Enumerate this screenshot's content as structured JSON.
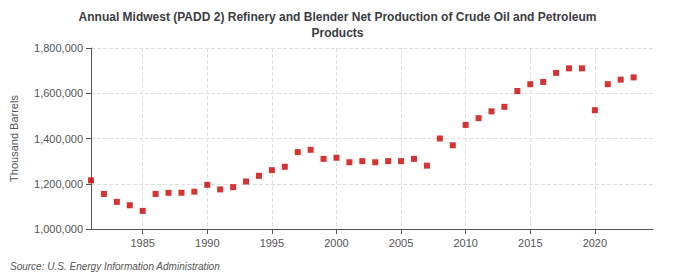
{
  "chart_data": {
    "type": "scatter",
    "title": "Annual Midwest (PADD 2) Refinery and Blender Net Production of Crude Oil and Petroleum\nProducts",
    "ylabel": "Thousand Barrels",
    "annotations": [
      "Source: U.S. Energy Information Administration"
    ],
    "x": [
      1981,
      1982,
      1983,
      1984,
      1985,
      1986,
      1987,
      1988,
      1989,
      1990,
      1991,
      1992,
      1993,
      1994,
      1995,
      1996,
      1997,
      1998,
      1999,
      2000,
      2001,
      2002,
      2003,
      2004,
      2005,
      2006,
      2007,
      2008,
      2009,
      2010,
      2011,
      2012,
      2013,
      2014,
      2015,
      2016,
      2017,
      2018,
      2019,
      2020,
      2021,
      2022,
      2023
    ],
    "values": [
      1215000,
      1155000,
      1120000,
      1105000,
      1080000,
      1155000,
      1160000,
      1160000,
      1165000,
      1195000,
      1175000,
      1185000,
      1210000,
      1235000,
      1260000,
      1275000,
      1340000,
      1350000,
      1310000,
      1315000,
      1295000,
      1300000,
      1295000,
      1300000,
      1300000,
      1310000,
      1280000,
      1400000,
      1370000,
      1460000,
      1490000,
      1520000,
      1540000,
      1610000,
      1640000,
      1650000,
      1690000,
      1710000,
      1710000,
      1525000,
      1640000,
      1660000,
      1670000
    ],
    "color": "#cc0000",
    "marker": "square",
    "xlim": [
      1981.0,
      2024.5
    ],
    "xticks": [
      1985,
      1990,
      1995,
      2000,
      2005,
      2010,
      2015,
      2020
    ],
    "ylim": [
      1000000,
      1800000
    ],
    "yticks": [
      {
        "value": 1000000,
        "label": "1,000,000"
      },
      {
        "value": 1200000,
        "label": "1,200,000"
      },
      {
        "value": 1400000,
        "label": "1,400,000"
      },
      {
        "value": 1600000,
        "label": "1,600,000"
      },
      {
        "value": 1800000,
        "label": "1,800,000"
      }
    ],
    "grid": true
  }
}
